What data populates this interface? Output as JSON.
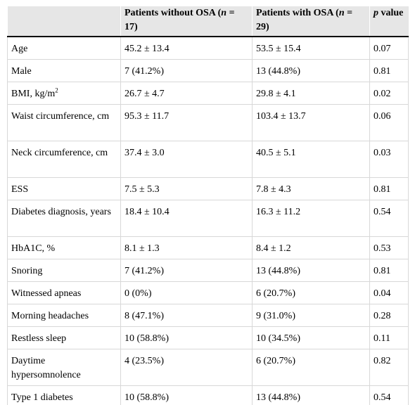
{
  "table": {
    "headers": [
      {
        "prefix": "",
        "var": "",
        "suffix": ""
      },
      {
        "prefix": "Patients without OSA (",
        "var": "n",
        "suffix": " = 17)"
      },
      {
        "prefix": "Patients with OSA (",
        "var": "n",
        "suffix": " = 29)"
      },
      {
        "prefix": "",
        "var": "p",
        "suffix": " value"
      }
    ],
    "rows": [
      {
        "label": "Age",
        "without": "45.2 ± 13.4",
        "with": "53.5 ± 15.4",
        "p": "0.07"
      },
      {
        "label": "Male",
        "without": "7 (41.2%)",
        "with": "13 (44.8%)",
        "p": "0.81"
      },
      {
        "label": "BMI, kg/m",
        "label_sup": "2",
        "without": "26.7 ± 4.7",
        "with": "29.8 ± 4.1",
        "p": "0.02"
      },
      {
        "label": "Waist circumference, cm",
        "without": "95.3 ± 11.7",
        "with": "103.4 ± 13.7",
        "p": "0.06"
      },
      {
        "label": "Neck circumference, cm",
        "without": "37.4 ± 3.0",
        "with": "40.5 ± 5.1",
        "p": "0.03"
      },
      {
        "label": "ESS",
        "without": "7.5 ± 5.3",
        "with": "7.8 ± 4.3",
        "p": "0.81"
      },
      {
        "label": "Diabetes diagnosis, years",
        "without": "18.4 ± 10.4",
        "with": "16.3 ± 11.2",
        "p": "0.54"
      },
      {
        "label": "HbA1C, %",
        "without": "8.1 ± 1.3",
        "with": "8.4 ± 1.2",
        "p": "0.53"
      },
      {
        "label": "Snoring",
        "without": "7 (41.2%)",
        "with": "13 (44.8%)",
        "p": "0.81"
      },
      {
        "label": "Witnessed apneas",
        "without": "0 (0%)",
        "with": "6 (20.7%)",
        "p": "0.04"
      },
      {
        "label": "Morning headaches",
        "without": "8 (47.1%)",
        "with": "9 (31.0%)",
        "p": "0.28"
      },
      {
        "label": "Restless sleep",
        "without": "10 (58.8%)",
        "with": "10 (34.5%)",
        "p": "0.11"
      },
      {
        "label": "Daytime hypersomnolence",
        "without": "4 (23.5%)",
        "with": "6 (20.7%)",
        "p": "0.82"
      },
      {
        "label": "Type 1 diabetes",
        "without": "10 (58.8%)",
        "with": "13 (44.8%)",
        "p": "0.54"
      }
    ]
  }
}
